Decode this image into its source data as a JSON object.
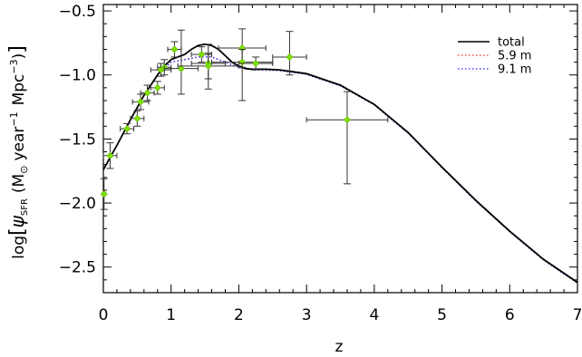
{
  "chart_data": {
    "type": "line",
    "xlabel": "z",
    "ylabel": {
      "prefix": "log",
      "psi": "ψ",
      "sub": "SFR",
      "open": "(M",
      "sun": "⊙",
      "year": "year",
      "exp1": "−1",
      "mpc": "Mpc",
      "exp2": "−3",
      "close": ")"
    },
    "xlim": [
      0,
      7
    ],
    "ylim": [
      -2.7,
      -0.45
    ],
    "xticks": [
      {
        "v": 0,
        "label": "0"
      },
      {
        "v": 1,
        "label": "1"
      },
      {
        "v": 2,
        "label": "2"
      },
      {
        "v": 3,
        "label": "3"
      },
      {
        "v": 4,
        "label": "4"
      },
      {
        "v": 5,
        "label": "5"
      },
      {
        "v": 6,
        "label": "6"
      },
      {
        "v": 7,
        "label": "7"
      }
    ],
    "yticks": [
      {
        "v": -0.5,
        "label": "−0.5"
      },
      {
        "v": -1.0,
        "label": "−1.0"
      },
      {
        "v": -1.5,
        "label": "−1.5"
      },
      {
        "v": -2.0,
        "label": "−2.0"
      },
      {
        "v": -2.5,
        "label": "−2.5"
      }
    ],
    "series": [
      {
        "name": "total",
        "color": "#000000",
        "style": "solid",
        "x": [
          0,
          0.2,
          0.4,
          0.6,
          0.8,
          0.9,
          1.0,
          1.1,
          1.2,
          1.3,
          1.4,
          1.5,
          1.6,
          1.7,
          1.8,
          1.9,
          2.0,
          2.1,
          2.2,
          2.4,
          2.6,
          2.8,
          3.0,
          3.5,
          4.0,
          4.5,
          5.0,
          5.5,
          6.0,
          6.5,
          7.0
        ],
        "y": [
          -1.74,
          -1.55,
          -1.35,
          -1.16,
          -1.0,
          -0.93,
          -0.88,
          -0.86,
          -0.84,
          -0.8,
          -0.77,
          -0.76,
          -0.77,
          -0.8,
          -0.85,
          -0.9,
          -0.93,
          -0.95,
          -0.955,
          -0.955,
          -0.96,
          -0.975,
          -0.99,
          -1.08,
          -1.23,
          -1.45,
          -1.72,
          -1.98,
          -2.22,
          -2.44,
          -2.62
        ]
      },
      {
        "name": "5.9 m",
        "color": "#ff3030",
        "style": "dotted",
        "x": [
          0,
          0.2,
          0.4,
          0.6,
          0.8,
          1.0,
          1.2,
          1.4,
          1.6,
          1.8,
          2.0,
          2.2,
          2.6,
          3.0,
          3.5,
          4.0,
          4.5,
          5.0,
          5.5,
          6.0,
          6.5,
          7.0
        ],
        "y": [
          -1.74,
          -1.55,
          -1.35,
          -1.16,
          -1.0,
          -0.9,
          -0.88,
          -0.86,
          -0.86,
          -0.9,
          -0.94,
          -0.96,
          -0.965,
          -0.995,
          -1.085,
          -1.235,
          -1.455,
          -1.725,
          -1.985,
          -2.225,
          -2.445,
          -2.625
        ]
      },
      {
        "name": "9.1 m",
        "color": "#2020ff",
        "style": "dotted",
        "x": [
          0,
          0.2,
          0.4,
          0.6,
          0.8,
          1.0,
          1.2,
          1.4,
          1.6,
          1.8,
          2.0,
          2.2,
          2.6,
          3.0,
          3.5,
          4.0,
          4.5,
          5.0,
          5.5,
          6.0,
          6.5,
          7.0
        ],
        "y": [
          -1.74,
          -1.55,
          -1.35,
          -1.16,
          -1.0,
          -0.9,
          -0.88,
          -0.86,
          -0.86,
          -0.9,
          -0.94,
          -0.96,
          -0.965,
          -0.995,
          -1.085,
          -1.235,
          -1.455,
          -1.725,
          -1.985,
          -2.225,
          -2.445,
          -2.625
        ]
      }
    ],
    "points": [
      {
        "x": 0.01,
        "y": -1.93,
        "xerr": 0.01,
        "yerr_lo": 0.12,
        "yerr_hi": 0.12
      },
      {
        "x": 0.1,
        "y": -1.63,
        "xerr": 0.1,
        "yerr_lo": 0.1,
        "yerr_hi": 0.1
      },
      {
        "x": 0.35,
        "y": -1.42,
        "xerr": 0.1,
        "yerr_lo": 0.04,
        "yerr_hi": 0.04
      },
      {
        "x": 0.5,
        "y": -1.34,
        "xerr": 0.1,
        "yerr_lo": 0.06,
        "yerr_hi": 0.06
      },
      {
        "x": 0.55,
        "y": -1.21,
        "xerr": 0.12,
        "yerr_lo": 0.06,
        "yerr_hi": 0.06
      },
      {
        "x": 0.65,
        "y": -1.14,
        "xerr": 0.1,
        "yerr_lo": 0.06,
        "yerr_hi": 0.06
      },
      {
        "x": 0.8,
        "y": -1.1,
        "xerr": 0.1,
        "yerr_lo": 0.05,
        "yerr_hi": 0.05
      },
      {
        "x": 0.85,
        "y": -0.96,
        "xerr": 0.15,
        "yerr_lo": 0.05,
        "yerr_hi": 0.05
      },
      {
        "x": 0.9,
        "y": -0.94,
        "xerr": 0.1,
        "yerr_lo": 0.06,
        "yerr_hi": 0.06
      },
      {
        "x": 1.05,
        "y": -0.8,
        "xerr": 0.1,
        "yerr_lo": 0.06,
        "yerr_hi": 0.06
      },
      {
        "x": 1.15,
        "y": -0.95,
        "xerr": 0.25,
        "yerr_lo": 0.2,
        "yerr_hi": 0.3
      },
      {
        "x": 1.45,
        "y": -0.84,
        "xerr": 0.15,
        "yerr_lo": 0.06,
        "yerr_hi": 0.06
      },
      {
        "x": 1.55,
        "y": -0.91,
        "xerr": 0.25,
        "yerr_lo": 0.2,
        "yerr_hi": 0.15
      },
      {
        "x": 1.55,
        "y": -0.93,
        "xerr": 0.45,
        "yerr_lo": 0.1,
        "yerr_hi": 0.1
      },
      {
        "x": 2.05,
        "y": -0.79,
        "xerr": 0.35,
        "yerr_lo": 0.15,
        "yerr_hi": 0.15
      },
      {
        "x": 2.05,
        "y": -0.9,
        "xerr": 0.45,
        "yerr_lo": 0.3,
        "yerr_hi": 0.1
      },
      {
        "x": 2.25,
        "y": -0.91,
        "xerr": 0.25,
        "yerr_lo": 0.05,
        "yerr_hi": 0.05
      },
      {
        "x": 2.75,
        "y": -0.86,
        "xerr": 0.25,
        "yerr_lo": 0.14,
        "yerr_hi": 0.2
      },
      {
        "x": 3.6,
        "y": -1.35,
        "xerr": 0.6,
        "yerr_lo": 0.5,
        "yerr_hi": 0.22
      }
    ],
    "legend": {
      "placement": "top-right"
    },
    "grid": false
  }
}
